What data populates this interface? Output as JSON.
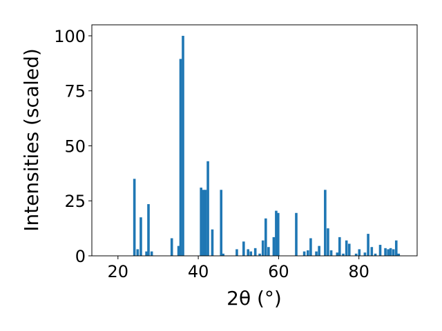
{
  "chart_data": {
    "type": "bar",
    "xlabel": "2θ (°)",
    "ylabel": "Intensities (scaled)",
    "xlim": [
      13.5,
      94.5
    ],
    "ylim": [
      0,
      105
    ],
    "xticks": [
      20,
      40,
      60,
      80
    ],
    "yticks": [
      0,
      25,
      50,
      75,
      100
    ],
    "bar_width": 0.62,
    "bar_color": "#1f77b4",
    "grid": false,
    "x": [
      24.1,
      24.9,
      25.7,
      27.1,
      27.6,
      28.4,
      33.4,
      35.1,
      35.6,
      36.2,
      40.7,
      41.3,
      41.8,
      42.4,
      43.5,
      45.7,
      46.2,
      49.6,
      51.3,
      52.4,
      53.1,
      54.2,
      55.3,
      56.1,
      56.8,
      57.5,
      58.8,
      59.4,
      59.9,
      64.4,
      66.4,
      67.3,
      68.0,
      69.4,
      70.1,
      71.6,
      72.3,
      73.1,
      74.6,
      75.2,
      76.1,
      76.9,
      77.6,
      79.3,
      80.1,
      81.5,
      82.3,
      83.2,
      84.1,
      85.3,
      86.6,
      87.3,
      87.9,
      88.6,
      89.3,
      89.9
    ],
    "values": [
      35,
      3,
      17.5,
      2,
      23.5,
      2,
      8,
      4.5,
      89.5,
      100,
      31,
      30,
      30,
      43,
      12,
      30,
      1,
      3,
      6.5,
      3,
      2,
      3.5,
      1,
      7,
      17,
      4,
      8.5,
      20.5,
      19.5,
      19.5,
      2,
      2.5,
      8,
      2,
      4.5,
      30,
      12.5,
      2.5,
      1.5,
      8.5,
      1,
      7,
      5.5,
      1,
      3,
      1.5,
      10,
      4,
      1,
      5,
      3.5,
      3,
      3.5,
      3,
      7,
      1
    ]
  }
}
